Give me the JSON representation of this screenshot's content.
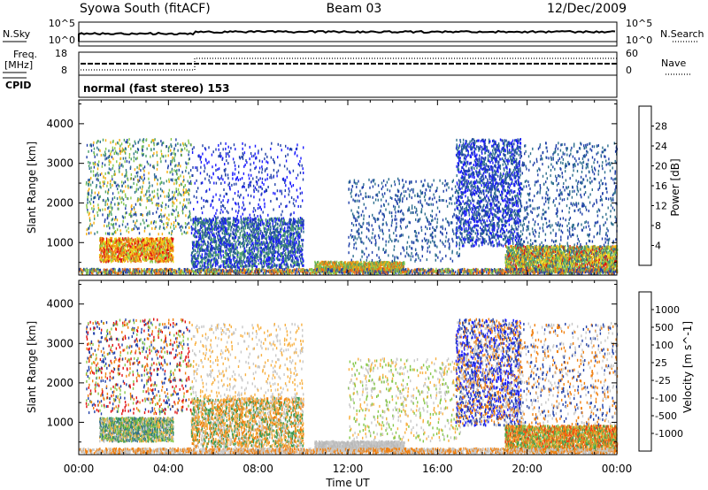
{
  "header": {
    "title_left": "Syowa South (fitACF)",
    "title_center": "Beam 03",
    "title_right": "12/Dec/2009"
  },
  "status_panels": {
    "nsky_label": "N.Sky",
    "nsearch_label": "N.Search",
    "nsky_ticks": [
      "10^5",
      "10^0"
    ],
    "nsearch_ticks": [
      "10^5",
      "10^0"
    ],
    "freq_label_line1": "Freq.",
    "freq_label_line2": "[MHz]",
    "freq_ticks": [
      "18",
      "8"
    ],
    "nave_label": "Nave",
    "nave_ticks": [
      "60",
      "0"
    ],
    "cpid_label": "CPID",
    "cpid_text": "normal (fast stereo) 153"
  },
  "chart_data": [
    {
      "type": "heatmap",
      "name": "power",
      "ylabel": "Slant Range [km]",
      "yticks": [
        1000,
        2000,
        3000,
        4000
      ],
      "ylim": [
        180,
        4600
      ],
      "xlim": [
        0,
        24
      ],
      "colorbar_label": "Power [dB]",
      "colorbar_ticks": [
        "4",
        "8",
        "12",
        "16",
        "20",
        "24",
        "28"
      ],
      "colorbar_colors": [
        "#1a1aff",
        "#1f3fa8",
        "#2e6f8e",
        "#4aa06a",
        "#86c84a",
        "#f0e020",
        "#f8b010",
        "#f07010",
        "#f04010",
        "#e01010"
      ],
      "regions": [
        {
          "t0": 0.9,
          "t1": 4.2,
          "r0": 500,
          "r1": 1100,
          "colors": [
            "#f07010",
            "#f8b010",
            "#e01010",
            "#86c84a",
            "#f0e020"
          ],
          "density": 0.45
        },
        {
          "t0": 0.3,
          "t1": 5.0,
          "r0": 1200,
          "r1": 3600,
          "colors": [
            "#4aa06a",
            "#2e6f8e",
            "#86c84a",
            "#1f3fa8",
            "#f8b010"
          ],
          "density": 0.05
        },
        {
          "t0": 5.0,
          "t1": 10.0,
          "r0": 350,
          "r1": 1600,
          "colors": [
            "#1f3fa8",
            "#1a1aff",
            "#2e6f8e",
            "#4aa06a"
          ],
          "density": 0.22
        },
        {
          "t0": 5.0,
          "t1": 10.0,
          "r0": 1600,
          "r1": 3500,
          "colors": [
            "#1f3fa8",
            "#1a1aff"
          ],
          "density": 0.03
        },
        {
          "t0": 10.5,
          "t1": 14.5,
          "r0": 250,
          "r1": 500,
          "colors": [
            "#f8b010",
            "#86c84a",
            "#f07010",
            "#4aa06a"
          ],
          "density": 0.55
        },
        {
          "t0": 12.0,
          "t1": 17.0,
          "r0": 500,
          "r1": 2600,
          "colors": [
            "#1f3fa8",
            "#2e6f8e"
          ],
          "density": 0.04
        },
        {
          "t0": 16.8,
          "t1": 19.7,
          "r0": 900,
          "r1": 3600,
          "colors": [
            "#1f3fa8",
            "#1a1aff",
            "#2e6f8e"
          ],
          "density": 0.16
        },
        {
          "t0": 19.0,
          "t1": 24.0,
          "r0": 250,
          "r1": 900,
          "colors": [
            "#86c84a",
            "#4aa06a",
            "#f8b010",
            "#f0e020",
            "#2e6f8e",
            "#e01010"
          ],
          "density": 0.45
        },
        {
          "t0": 19.5,
          "t1": 24.0,
          "r0": 900,
          "r1": 3500,
          "colors": [
            "#1f3fa8",
            "#2e6f8e"
          ],
          "density": 0.04
        },
        {
          "t0": 0.0,
          "t1": 24.0,
          "r0": 200,
          "r1": 320,
          "colors": [
            "#1f3fa8",
            "#f07010",
            "#86c84a"
          ],
          "density": 0.35
        }
      ]
    },
    {
      "type": "heatmap",
      "name": "velocity",
      "ylabel": "Slant Range [km]",
      "yticks": [
        1000,
        2000,
        3000,
        4000
      ],
      "ylim": [
        180,
        4600
      ],
      "xlim": [
        0,
        24
      ],
      "colorbar_label": "Velocity [m s^-1]",
      "colorbar_ticks": [
        "-1000",
        "-500",
        "-100",
        "-25",
        "25",
        "100",
        "500",
        "1000"
      ],
      "colorbar_colors": [
        "#e01010",
        "#f04010",
        "#f08010",
        "#f8b040",
        "#c8c8c8",
        "#c8c8c8",
        "#86c84a",
        "#3a9a50",
        "#2e6f8e",
        "#1f3fa8",
        "#1a1aff"
      ],
      "regions": [
        {
          "t0": 0.9,
          "t1": 4.2,
          "r0": 500,
          "r1": 1100,
          "colors": [
            "#86c84a",
            "#3a9a50",
            "#2e6f8e",
            "#f8b040",
            "#c8c8c8"
          ],
          "density": 0.45
        },
        {
          "t0": 0.3,
          "t1": 5.0,
          "r0": 1200,
          "r1": 3600,
          "colors": [
            "#e01010",
            "#f08010",
            "#1f3fa8",
            "#86c84a"
          ],
          "density": 0.05
        },
        {
          "t0": 5.0,
          "t1": 10.0,
          "r0": 350,
          "r1": 1600,
          "colors": [
            "#c8c8c8",
            "#f8b040",
            "#f08010",
            "#3a9a50"
          ],
          "density": 0.22
        },
        {
          "t0": 5.0,
          "t1": 10.0,
          "r0": 1600,
          "r1": 3500,
          "colors": [
            "#c8c8c8",
            "#f8b040"
          ],
          "density": 0.03
        },
        {
          "t0": 10.5,
          "t1": 14.5,
          "r0": 250,
          "r1": 500,
          "colors": [
            "#c8c8c8",
            "#b8b8b8"
          ],
          "density": 0.55
        },
        {
          "t0": 12.0,
          "t1": 17.0,
          "r0": 500,
          "r1": 2600,
          "colors": [
            "#c8c8c8",
            "#86c84a",
            "#f8b040"
          ],
          "density": 0.04
        },
        {
          "t0": 16.8,
          "t1": 19.7,
          "r0": 900,
          "r1": 3600,
          "colors": [
            "#1f3fa8",
            "#1a1aff",
            "#f08010",
            "#c8c8c8"
          ],
          "density": 0.16
        },
        {
          "t0": 19.0,
          "t1": 24.0,
          "r0": 250,
          "r1": 900,
          "colors": [
            "#f08010",
            "#f8b040",
            "#f04010",
            "#3a9a50",
            "#86c84a"
          ],
          "density": 0.45
        },
        {
          "t0": 19.5,
          "t1": 24.0,
          "r0": 900,
          "r1": 3500,
          "colors": [
            "#f08010",
            "#c8c8c8",
            "#1f3fa8"
          ],
          "density": 0.04
        },
        {
          "t0": 0.0,
          "t1": 24.0,
          "r0": 200,
          "r1": 320,
          "colors": [
            "#c8c8c8",
            "#f08010"
          ],
          "density": 0.35
        }
      ]
    }
  ],
  "xaxis": {
    "label": "Time UT",
    "ticks": [
      "00:00",
      "04:00",
      "08:00",
      "12:00",
      "16:00",
      "20:00",
      "00:00"
    ]
  }
}
